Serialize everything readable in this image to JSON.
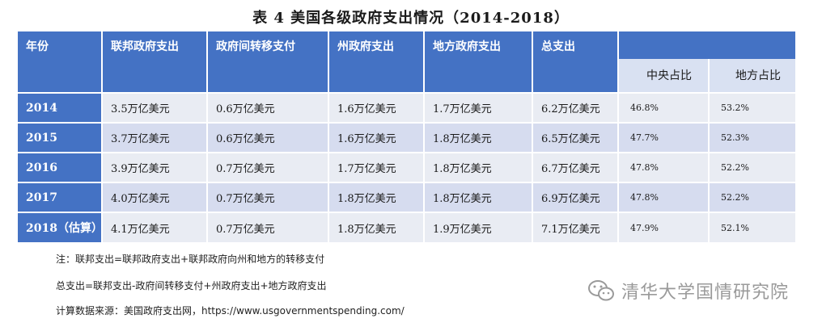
{
  "title": "表 4 美国各级政府支出情况（2014-2018）",
  "headers": {
    "year": "年份",
    "federal": "联邦政府支出",
    "transfer": "政府间转移支付",
    "state": "州政府支出",
    "local": "地方政府支出",
    "total": "总支出",
    "central_share": "中央占比",
    "local_share": "地方占比"
  },
  "rows": [
    {
      "year": "2014",
      "federal": "3.5万亿美元",
      "transfer": "0.6万亿美元",
      "state": "1.6万亿美元",
      "local": "1.7万亿美元",
      "total": "6.2万亿美元",
      "central_share": "46.8%",
      "local_share": "53.2%"
    },
    {
      "year": "2015",
      "federal": "3.7万亿美元",
      "transfer": "0.6万亿美元",
      "state": "1.6万亿美元",
      "local": "1.8万亿美元",
      "total": "6.5万亿美元",
      "central_share": "47.7%",
      "local_share": "52.3%"
    },
    {
      "year": "2016",
      "federal": "3.9万亿美元",
      "transfer": "0.7万亿美元",
      "state": "1.7万亿美元",
      "local": "1.8万亿美元",
      "total": "6.7万亿美元",
      "central_share": "47.8%",
      "local_share": "52.2%"
    },
    {
      "year": "2017",
      "federal": "4.0万亿美元",
      "transfer": "0.7万亿美元",
      "state": "1.8万亿美元",
      "local": "1.8万亿美元",
      "total": "6.9万亿美元",
      "central_share": "47.8%",
      "local_share": "52.2%"
    },
    {
      "year": "2018（估算）",
      "federal": "4.1万亿美元",
      "transfer": "0.7万亿美元",
      "state": "1.8万亿美元",
      "local": "1.9万亿美元",
      "total": "7.1万亿美元",
      "central_share": "47.9%",
      "local_share": "52.1%"
    }
  ],
  "notes": {
    "note1": "注：联邦支出=联邦政府支出+联邦政府向州和地方的转移支付",
    "note2": "总支出=联邦支出-政府间转移支付+州政府支出+地方政府支出",
    "note3": "计算数据来源：美国政府支出网，https://www.usgovernmentspending.com/"
  },
  "watermark": {
    "text": "清华大学国情研究院",
    "icon": "wechat-icon"
  },
  "colors": {
    "header_blue": "#4472c4",
    "cell_light": "#e9ecf3",
    "cell_mid": "#d6dcef",
    "subheader": "#d9e1f2"
  }
}
